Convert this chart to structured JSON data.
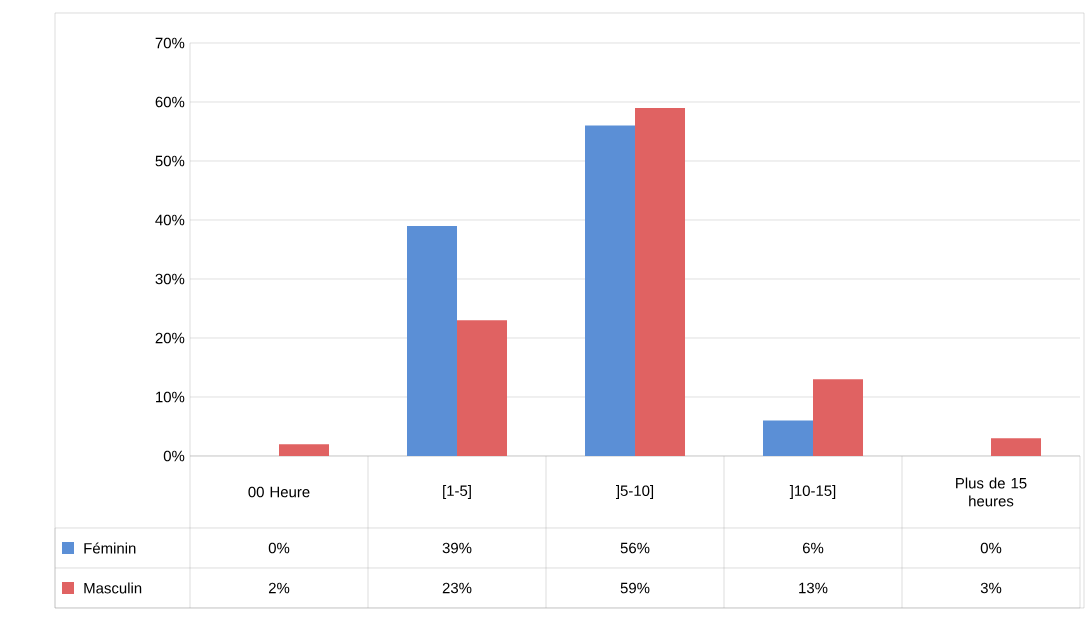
{
  "chart_data": {
    "type": "bar",
    "categories": [
      "00 Heure",
      "[1-5]",
      "]5-10]",
      "]10-15]",
      "Plus de 15 heures"
    ],
    "series": [
      {
        "name": "Féminin",
        "color": "#5b8fd6",
        "values": [
          0,
          39,
          56,
          6,
          0
        ],
        "value_labels": [
          "0%",
          "39%",
          "56%",
          "6%",
          "0%"
        ]
      },
      {
        "name": "Masculin",
        "color": "#e06262",
        "values": [
          2,
          23,
          59,
          13,
          3
        ],
        "value_labels": [
          "2%",
          "23%",
          "59%",
          "13%",
          "3%"
        ]
      }
    ],
    "ylim": [
      0,
      70
    ],
    "yticks": [
      {
        "value": 0,
        "label": "0%"
      },
      {
        "value": 10,
        "label": "10%"
      },
      {
        "value": 20,
        "label": "20%"
      },
      {
        "value": 30,
        "label": "30%"
      },
      {
        "value": 40,
        "label": "40%"
      },
      {
        "value": 50,
        "label": "50%"
      },
      {
        "value": 60,
        "label": "60%"
      },
      {
        "value": 70,
        "label": "70%"
      }
    ],
    "grid": "y",
    "legend": "bottom"
  }
}
